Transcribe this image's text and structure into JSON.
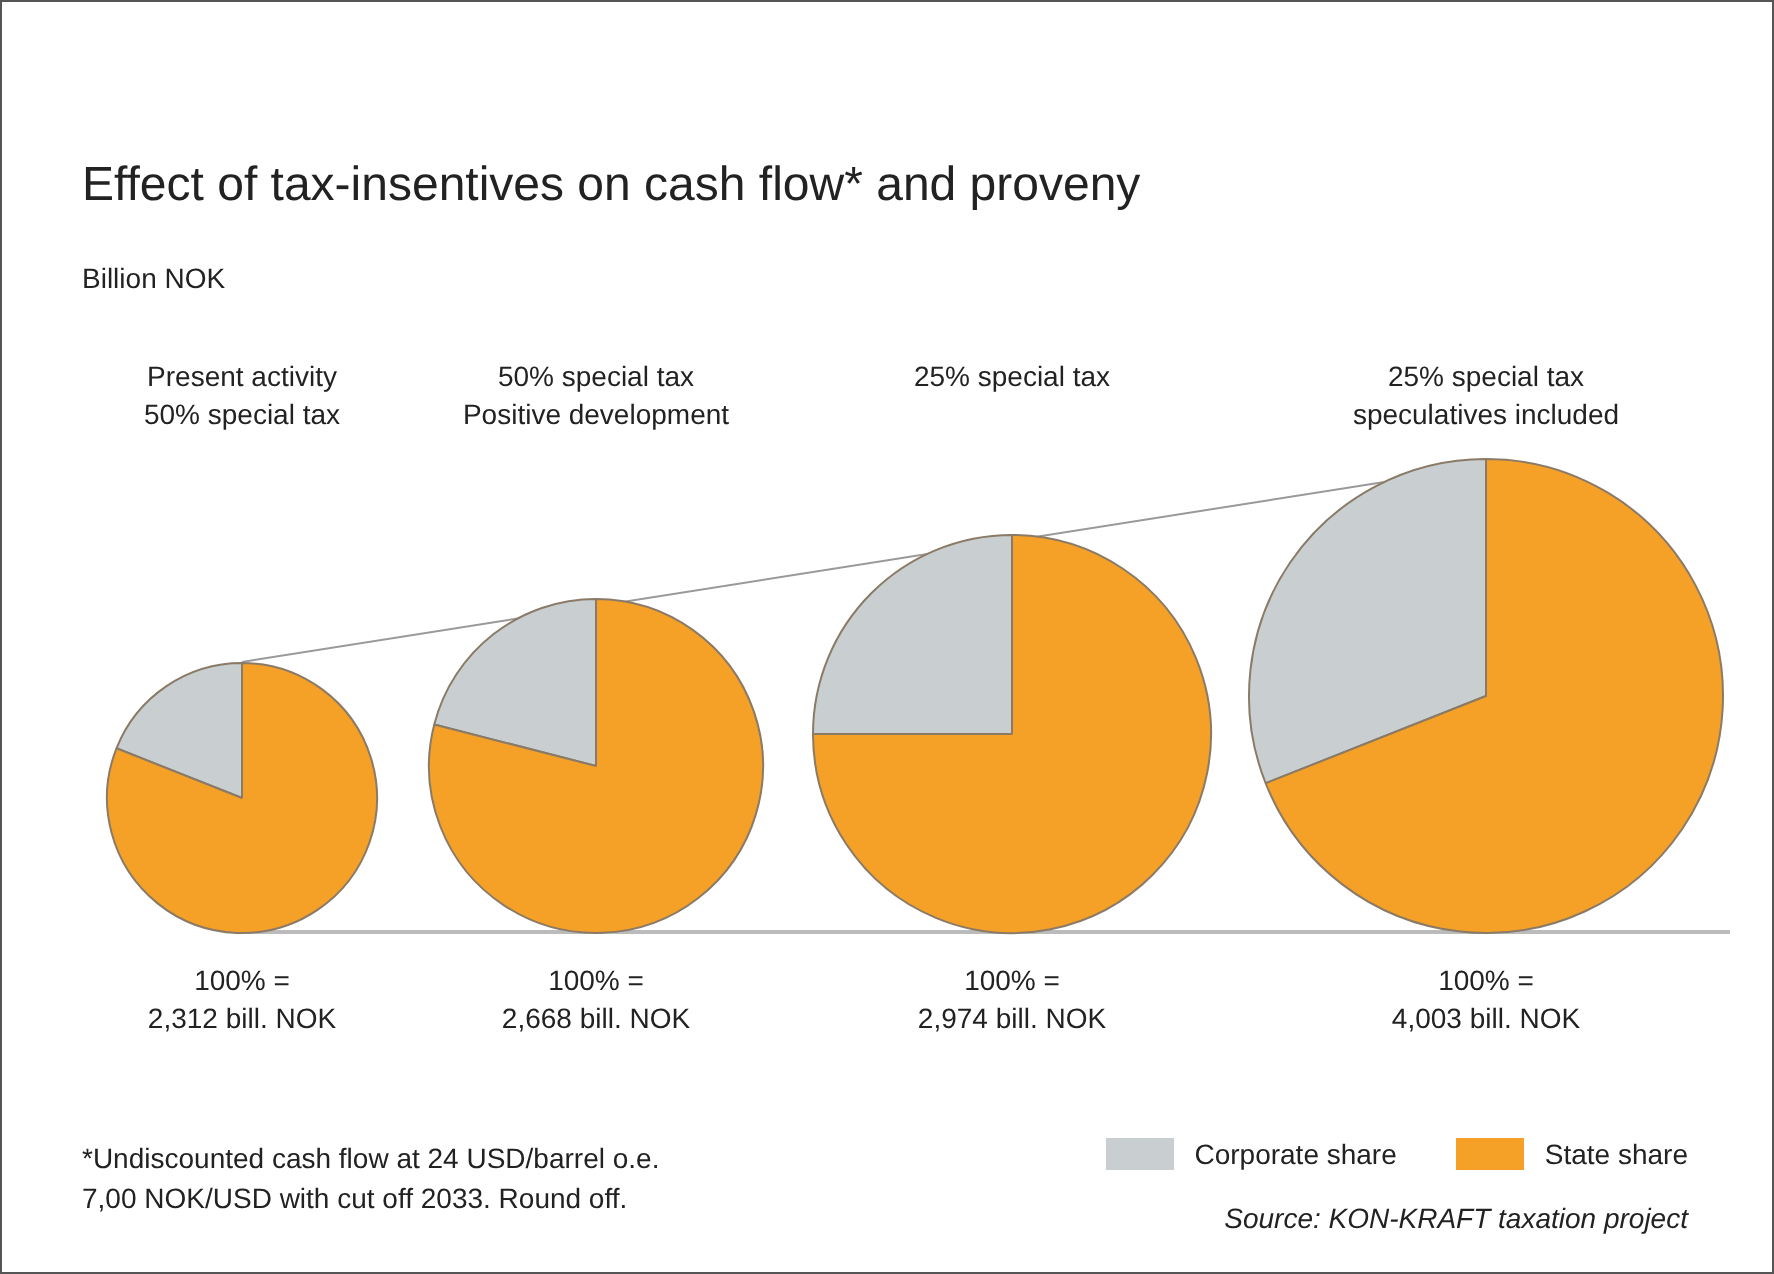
{
  "chart_data": {
    "type": "pie",
    "title": "Effect of tax-insentives on cash flow* and proveny",
    "subtitle": "Billion NOK",
    "categories": [
      "Corporate share",
      "State share"
    ],
    "colors": [
      "#c9cfd1",
      "#f5a128"
    ],
    "legend": "bottom right",
    "series": [
      {
        "name": "Present activity\n50% special tax",
        "values": [
          19,
          81
        ]
      },
      {
        "name": "50% special tax\nPositive development",
        "values": [
          21,
          79
        ]
      },
      {
        "name": "25% special tax",
        "values": [
          25,
          75
        ]
      },
      {
        "name": "25% special tax\nspeculatives included",
        "values": [
          31,
          69
        ]
      }
    ],
    "totals": [
      "100% =\n2,312 bill. NOK",
      "100% =\n2,668 bill. NOK",
      "100% =\n2,974 bill. NOK",
      "100% =\n4,003 bill. NOK"
    ],
    "annotations": [
      "*Undiscounted cash flow at 24 USD/barrel o.e.\n7,00 NOK/USD with cut off 2033. Round off.",
      "Source: KON-KRAFT taxation project"
    ]
  }
}
